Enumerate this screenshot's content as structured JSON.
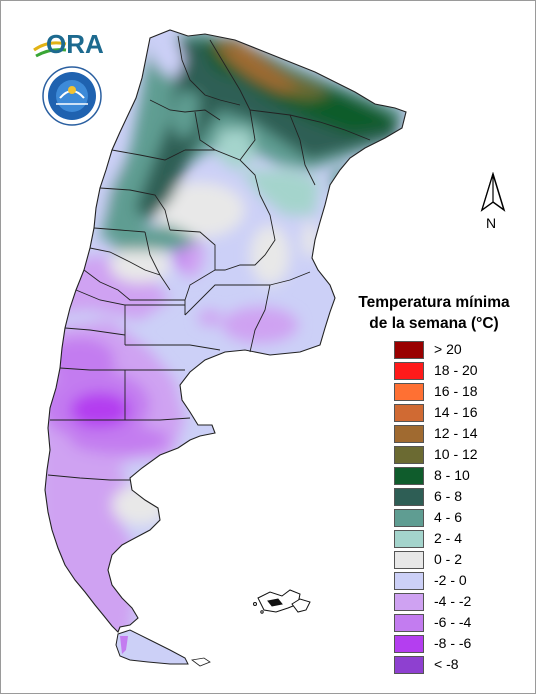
{
  "branding": {
    "ora_logo_text": "ORA",
    "seal_icon": "smn-argentina-seal-icon"
  },
  "north_arrow": {
    "label": "N",
    "icon": "north-arrow-icon"
  },
  "legend": {
    "title_line1": "Temperatura mínima",
    "title_line2": "de la semana (°C)",
    "items": [
      {
        "label": "> 20",
        "color": "#990000"
      },
      {
        "label": "18 - 20",
        "color": "#ff1a1a"
      },
      {
        "label": "16 - 18",
        "color": "#ff7033"
      },
      {
        "label": "14 - 16",
        "color": "#d06a33"
      },
      {
        "label": "12 - 14",
        "color": "#a06a30"
      },
      {
        "label": "10 - 12",
        "color": "#6b6a32"
      },
      {
        "label": "8 - 10",
        "color": "#0f5c2c"
      },
      {
        "label": "6 - 8",
        "color": "#2e5e55"
      },
      {
        "label": "4 - 6",
        "color": "#5f9d92"
      },
      {
        "label": "2 - 4",
        "color": "#a4d4cc"
      },
      {
        "label": "0 - 2",
        "color": "#e8e8e8"
      },
      {
        "label": "-2 - 0",
        "color": "#ccd0f7"
      },
      {
        "label": "-4 - -2",
        "color": "#cfa2f2"
      },
      {
        "label": "-6 - -4",
        "color": "#c37cf0"
      },
      {
        "label": "-8 - -6",
        "color": "#b43ef0"
      },
      {
        "label": "< -8",
        "color": "#8e40d0"
      }
    ]
  }
}
